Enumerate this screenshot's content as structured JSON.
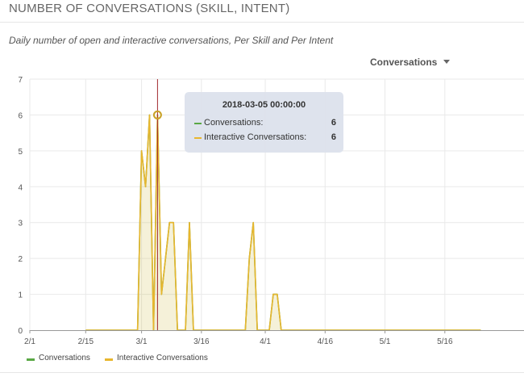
{
  "widget": {
    "title": "NUMBER OF CONVERSATIONS (SKILL, INTENT)",
    "subtitle": "Daily number of open and interactive conversations, Per Skill and Per Intent",
    "metric_selector": {
      "selected": "Conversations",
      "icon": "caret-down-icon"
    }
  },
  "tooltip": {
    "title": "2018-03-05 00:00:00",
    "rows": [
      {
        "label": "Conversations:",
        "value": "6",
        "color": "#5aa845"
      },
      {
        "label": "Interactive Conversations:",
        "value": "6",
        "color": "#e8b62e"
      }
    ]
  },
  "legend": [
    {
      "label": "Conversations",
      "color": "#5aa845"
    },
    {
      "label": "Interactive Conversations",
      "color": "#e8b62e"
    }
  ],
  "chart_data": {
    "type": "area",
    "title": "NUMBER OF CONVERSATIONS (SKILL, INTENT)",
    "subtitle": "Daily number of open and interactive conversations, Per Skill and Per Intent",
    "xlabel": "",
    "ylabel": "",
    "x_domain": [
      "2018-02-01",
      "2018-05-31"
    ],
    "x_ticks": [
      "2018-02-01",
      "2018-02-15",
      "2018-03-01",
      "2018-03-16",
      "2018-04-01",
      "2018-04-16",
      "2018-05-01",
      "2018-05-16"
    ],
    "x_tick_labels": [
      "2/1",
      "2/15",
      "3/1",
      "3/16",
      "4/1",
      "4/16",
      "5/1",
      "5/16"
    ],
    "ylim": [
      0,
      7
    ],
    "y_ticks": [
      0,
      1,
      2,
      3,
      4,
      5,
      6,
      7
    ],
    "grid": true,
    "legend_position": "bottom-left",
    "highlight_date": "2018-03-05",
    "highlight_color": "#a0282d",
    "series": [
      {
        "name": "Conversations",
        "color": "#5aa845",
        "points": [
          [
            "2018-02-15",
            0
          ],
          [
            "2018-02-28",
            0
          ],
          [
            "2018-03-01",
            5
          ],
          [
            "2018-03-02",
            4
          ],
          [
            "2018-03-03",
            6
          ],
          [
            "2018-03-04",
            0
          ],
          [
            "2018-03-05",
            6
          ],
          [
            "2018-03-06",
            1
          ],
          [
            "2018-03-07",
            2
          ],
          [
            "2018-03-08",
            3
          ],
          [
            "2018-03-09",
            3
          ],
          [
            "2018-03-10",
            0
          ],
          [
            "2018-03-12",
            0
          ],
          [
            "2018-03-13",
            3
          ],
          [
            "2018-03-14",
            0
          ],
          [
            "2018-03-27",
            0
          ],
          [
            "2018-03-28",
            2
          ],
          [
            "2018-03-29",
            3
          ],
          [
            "2018-03-30",
            0
          ],
          [
            "2018-04-02",
            0
          ],
          [
            "2018-04-03",
            1
          ],
          [
            "2018-04-04",
            1
          ],
          [
            "2018-04-05",
            0
          ],
          [
            "2018-05-25",
            0
          ]
        ]
      },
      {
        "name": "Interactive Conversations",
        "color": "#e8b62e",
        "points": [
          [
            "2018-02-15",
            0
          ],
          [
            "2018-02-28",
            0
          ],
          [
            "2018-03-01",
            5
          ],
          [
            "2018-03-02",
            4
          ],
          [
            "2018-03-03",
            6
          ],
          [
            "2018-03-04",
            0
          ],
          [
            "2018-03-05",
            6
          ],
          [
            "2018-03-06",
            1
          ],
          [
            "2018-03-07",
            2
          ],
          [
            "2018-03-08",
            3
          ],
          [
            "2018-03-09",
            3
          ],
          [
            "2018-03-10",
            0
          ],
          [
            "2018-03-12",
            0
          ],
          [
            "2018-03-13",
            3
          ],
          [
            "2018-03-14",
            0
          ],
          [
            "2018-03-27",
            0
          ],
          [
            "2018-03-28",
            2
          ],
          [
            "2018-03-29",
            3
          ],
          [
            "2018-03-30",
            0
          ],
          [
            "2018-04-02",
            0
          ],
          [
            "2018-04-03",
            1
          ],
          [
            "2018-04-04",
            1
          ],
          [
            "2018-04-05",
            0
          ],
          [
            "2018-05-25",
            0
          ]
        ]
      }
    ]
  }
}
